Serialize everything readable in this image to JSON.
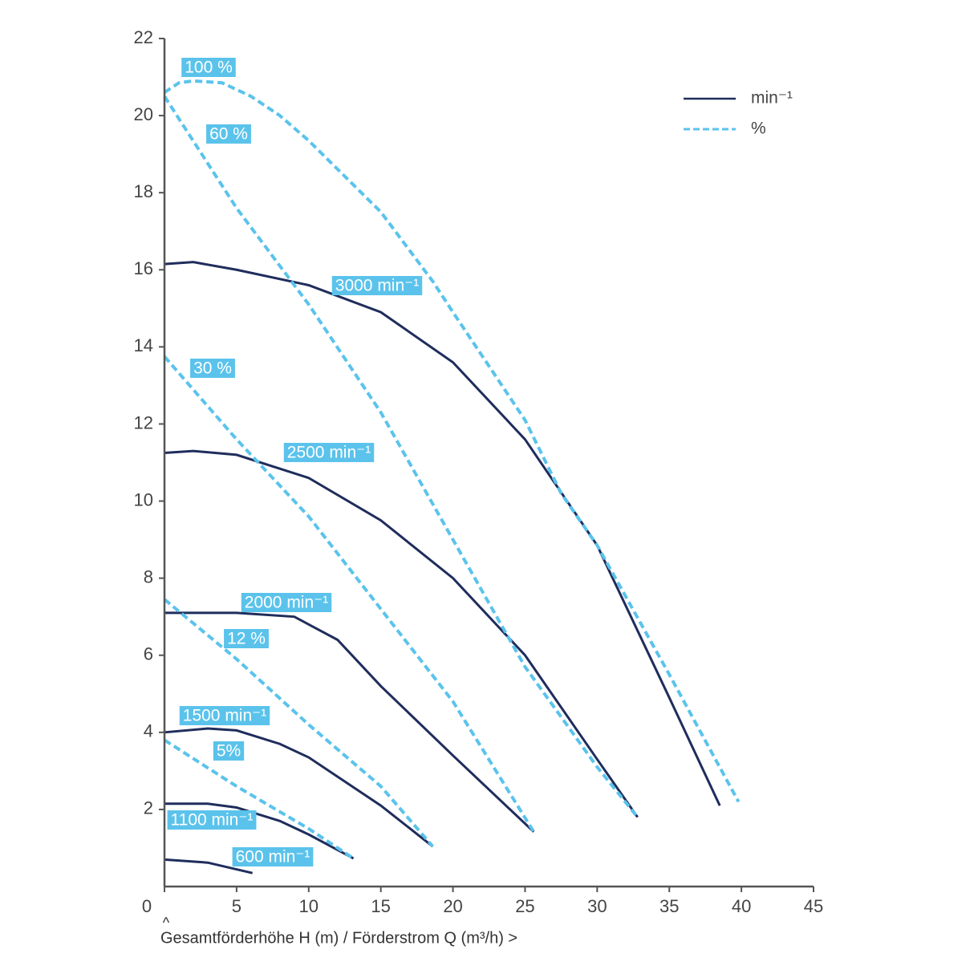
{
  "chart_data": {
    "type": "line",
    "xlabel": "Gesamtförderhöhe H (m) / Förderstrom Q (m³/h) >",
    "y_marker": "^",
    "xlim": [
      0,
      45
    ],
    "ylim": [
      0,
      22
    ],
    "xticks": [
      0,
      5,
      10,
      15,
      20,
      25,
      30,
      35,
      40,
      45
    ],
    "yticks": [
      2,
      4,
      6,
      8,
      10,
      12,
      14,
      16,
      18,
      20,
      22
    ],
    "grid": true,
    "hatch": true,
    "legend_position": "upper right",
    "legend": [
      {
        "label": "min⁻¹",
        "color": "#1f2d5c",
        "dashed": false
      },
      {
        "label": "%",
        "color": "#5bc3eb",
        "dashed": true
      }
    ],
    "series": [
      {
        "name": "3000 min⁻¹",
        "color": "#1f2d5c",
        "dashed": false,
        "x": [
          0,
          2,
          5,
          10,
          15,
          20,
          25,
          30,
          35,
          38.5
        ],
        "values": [
          16.15,
          16.2,
          16.0,
          15.6,
          14.9,
          13.6,
          11.6,
          8.85,
          4.9,
          2.1
        ]
      },
      {
        "name": "2500 min⁻¹",
        "color": "#1f2d5c",
        "dashed": false,
        "x": [
          0,
          2,
          5,
          10,
          15,
          20,
          25,
          30,
          32.8
        ],
        "values": [
          11.25,
          11.3,
          11.2,
          10.6,
          9.5,
          8.0,
          6.0,
          3.3,
          1.8
        ]
      },
      {
        "name": "2000 min⁻¹",
        "color": "#1f2d5c",
        "dashed": false,
        "x": [
          0,
          5,
          9,
          12,
          15,
          20,
          25.6
        ],
        "values": [
          7.1,
          7.1,
          7.0,
          6.4,
          5.2,
          3.4,
          1.42
        ]
      },
      {
        "name": "1500 min⁻¹",
        "color": "#1f2d5c",
        "dashed": false,
        "x": [
          0,
          3,
          5,
          8,
          10,
          15,
          18.6
        ],
        "values": [
          4.0,
          4.1,
          4.05,
          3.7,
          3.35,
          2.1,
          1.04
        ]
      },
      {
        "name": "1100 min⁻¹",
        "color": "#1f2d5c",
        "dashed": false,
        "x": [
          0,
          3,
          5,
          8,
          10,
          13.1
        ],
        "values": [
          2.15,
          2.15,
          2.05,
          1.7,
          1.35,
          0.73
        ]
      },
      {
        "name": "600 min⁻¹",
        "color": "#1f2d5c",
        "dashed": false,
        "x": [
          0,
          3,
          6.1
        ],
        "values": [
          0.7,
          0.62,
          0.35
        ]
      },
      {
        "name": "100 %",
        "color": "#5bc3eb",
        "dashed": true,
        "x": [
          0,
          1,
          2,
          4,
          6,
          8,
          10,
          15,
          18.6,
          20,
          25,
          27.5,
          30,
          35,
          39.8
        ],
        "values": [
          20.6,
          20.85,
          20.9,
          20.85,
          20.5,
          20.0,
          19.35,
          17.5,
          15.7,
          14.9,
          12.1,
          10.2,
          8.85,
          5.5,
          2.2
        ]
      },
      {
        "name": "60 %",
        "color": "#5bc3eb",
        "dashed": true,
        "x": [
          0,
          5,
          10,
          15,
          20,
          25,
          30,
          32.8
        ],
        "values": [
          20.5,
          17.6,
          15.1,
          12.3,
          9.0,
          5.7,
          3.1,
          1.8
        ]
      },
      {
        "name": "30 %",
        "color": "#5bc3eb",
        "dashed": true,
        "x": [
          0,
          5,
          10,
          15,
          20,
          25.6
        ],
        "values": [
          13.75,
          11.6,
          9.6,
          7.2,
          4.8,
          1.42
        ]
      },
      {
        "name": "12 %",
        "color": "#5bc3eb",
        "dashed": true,
        "x": [
          0,
          5,
          10,
          15,
          18.6
        ],
        "values": [
          7.45,
          5.9,
          4.2,
          2.6,
          1.04
        ]
      },
      {
        "name": "5%",
        "color": "#5bc3eb",
        "dashed": true,
        "x": [
          0,
          5,
          10,
          13.1
        ],
        "values": [
          3.8,
          2.6,
          1.5,
          0.73
        ]
      }
    ]
  }
}
